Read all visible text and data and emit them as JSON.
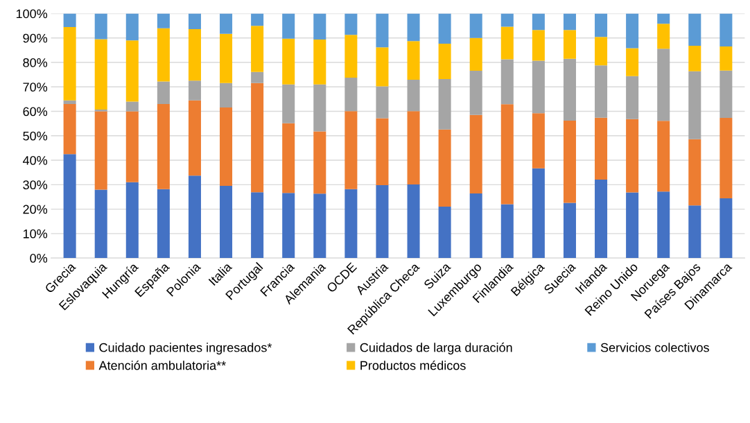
{
  "chart_data": {
    "type": "bar",
    "stacked": true,
    "categories": [
      "Grecia",
      "Eslovaquia",
      "Hungría",
      "España",
      "Polonia",
      "Italia",
      "Portugal",
      "Francia",
      "Alemania",
      "OCDE",
      "Austria",
      "República Checa",
      "Suiza",
      "Luxemburgo",
      "Finlandia",
      "Bélgica",
      "Suecia",
      "Irlanda",
      "Reino Unido",
      "Noruega",
      "Países Bajos",
      "Dinamarca"
    ],
    "series": [
      {
        "name": "Cuidado pacientes ingresados*",
        "color": "#4472c4",
        "values": [
          42.5,
          28,
          31,
          28.2,
          33.7,
          29.5,
          26.9,
          26.6,
          26.3,
          28.2,
          29.8,
          30.1,
          21,
          26.4,
          22,
          36.7,
          22.6,
          32.1,
          26.8,
          27.2,
          21.5,
          24.4
        ]
      },
      {
        "name": "Atención ambulatoria**",
        "color": "#ed7d31",
        "values": [
          20.5,
          32,
          29,
          34.8,
          30.8,
          32.1,
          44.7,
          28.5,
          25.5,
          31.9,
          27.4,
          30,
          31.6,
          32.1,
          40.9,
          22.5,
          33.6,
          25.3,
          30,
          28.9,
          27.1,
          32.9
        ]
      },
      {
        "name": "Cuidados de larga duración",
        "color": "#a5a5a5",
        "values": [
          1.5,
          0.7,
          4,
          9.2,
          8.1,
          10,
          4.5,
          15.9,
          19.2,
          13.7,
          13,
          12.8,
          20.6,
          18.1,
          18.4,
          21.5,
          25.3,
          21.4,
          17.6,
          29.5,
          27.8,
          19.4
        ]
      },
      {
        "name": "Productos médicos",
        "color": "#ffc000",
        "values": [
          30,
          28.8,
          25,
          21.8,
          21,
          20.1,
          18.9,
          18.7,
          18.4,
          17.5,
          16,
          15.8,
          14.5,
          13.4,
          13.3,
          12.6,
          11.8,
          11.6,
          11.4,
          10.2,
          10.4,
          9.8
        ]
      },
      {
        "name": "Servicios colectivos",
        "color": "#5b9bd5",
        "values": [
          5.5,
          10.5,
          11,
          6,
          6.4,
          8.3,
          5,
          10.3,
          10.6,
          8.7,
          13.8,
          11.3,
          12.3,
          10,
          5.4,
          6.7,
          6.7,
          9.6,
          14.2,
          4.2,
          13.2,
          13.5
        ]
      }
    ],
    "ylim": [
      0,
      100
    ],
    "yticks": [
      {
        "value": 0,
        "label": "0%"
      },
      {
        "value": 10,
        "label": "10%"
      },
      {
        "value": 20,
        "label": "20%"
      },
      {
        "value": 30,
        "label": "30%"
      },
      {
        "value": 40,
        "label": "40%"
      },
      {
        "value": 50,
        "label": "50%"
      },
      {
        "value": 60,
        "label": "60%"
      },
      {
        "value": 70,
        "label": "70%"
      },
      {
        "value": 80,
        "label": "80%"
      },
      {
        "value": 90,
        "label": "90%"
      },
      {
        "value": 100,
        "label": "100%"
      }
    ],
    "grid": "y",
    "legend": "bottom"
  }
}
